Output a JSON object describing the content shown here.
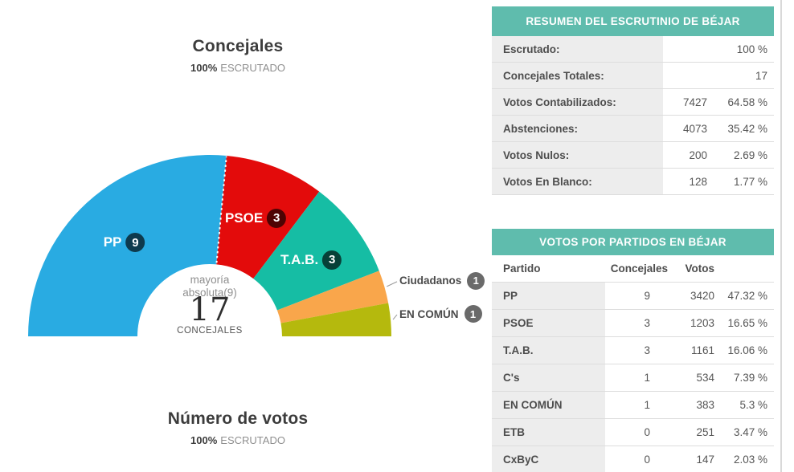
{
  "concejales_section": {
    "title": "Concejales",
    "escrutado_value": "100%",
    "escrutado_label": "ESCRUTADO",
    "center": {
      "majority_note_line1": "mayoría",
      "majority_note_line2": "absoluta(9)",
      "total_seats": "17",
      "total_label": "CONCEJALES"
    }
  },
  "votos_section": {
    "title": "Número de votos",
    "escrutado_value": "100%",
    "escrutado_label": "ESCRUTADO"
  },
  "summary_table": {
    "title": "RESUMEN DEL ESCRUTINIO DE BÉJAR",
    "rows": [
      {
        "label": "Escrutado:",
        "value": "",
        "pct": "100 %"
      },
      {
        "label": "Concejales Totales:",
        "value": "",
        "pct": "17"
      },
      {
        "label": "Votos Contabilizados:",
        "value": "7427",
        "pct": "64.58 %"
      },
      {
        "label": "Abstenciones:",
        "value": "4073",
        "pct": "35.42 %"
      },
      {
        "label": "Votos Nulos:",
        "value": "200",
        "pct": "2.69 %"
      },
      {
        "label": "Votos En Blanco:",
        "value": "128",
        "pct": "1.77 %"
      }
    ]
  },
  "parties_table": {
    "title": "VOTOS POR PARTIDOS EN BÉJAR",
    "columns": [
      "Partido",
      "Concejales",
      "Votos"
    ],
    "rows": [
      {
        "party": "PP",
        "seats": "9",
        "votes": "3420",
        "pct": "47.32 %"
      },
      {
        "party": "PSOE",
        "seats": "3",
        "votes": "1203",
        "pct": "16.65 %"
      },
      {
        "party": "T.A.B.",
        "seats": "3",
        "votes": "1161",
        "pct": "16.06 %"
      },
      {
        "party": "C's",
        "seats": "1",
        "votes": "534",
        "pct": "7.39 %"
      },
      {
        "party": "EN COMÚN",
        "seats": "1",
        "votes": "383",
        "pct": "5.3 %"
      },
      {
        "party": "ETB",
        "seats": "0",
        "votes": "251",
        "pct": "3.47 %"
      },
      {
        "party": "CxByC",
        "seats": "0",
        "votes": "147",
        "pct": "2.03 %"
      }
    ]
  },
  "colors": {
    "table_header_teal": "#5fbcad",
    "label_cell_gray": "#ededed",
    "row_border": "#dddddd",
    "divider": "#d9d9d9",
    "majority_line": "#ffffff",
    "leader_line": "#999999"
  },
  "chart_data": {
    "type": "pie",
    "subtype": "semicircle-donut",
    "title": "Concejales",
    "subtitle": "100% ESCRUTADO",
    "total_seats": 17,
    "majority_seats": 9,
    "majority_label": "mayoría absoluta(9)",
    "center_label": "17 CONCEJALES",
    "series": [
      {
        "name": "PP",
        "slug": "pp",
        "seats": 9,
        "color": "#29abe2",
        "label_style": "inside"
      },
      {
        "name": "PSOE",
        "slug": "psoe",
        "seats": 3,
        "color": "#e30b0b",
        "label_style": "inside"
      },
      {
        "name": "T.A.B.",
        "slug": "tab",
        "seats": 3,
        "color": "#16bda4",
        "label_style": "inside"
      },
      {
        "name": "Ciudadanos",
        "slug": "ciudadanos",
        "seats": 1,
        "color": "#f9a64b",
        "label_style": "outside"
      },
      {
        "name": "EN COMÚN",
        "slug": "en-comun",
        "seats": 1,
        "color": "#b5b90d",
        "label_style": "outside"
      }
    ]
  }
}
